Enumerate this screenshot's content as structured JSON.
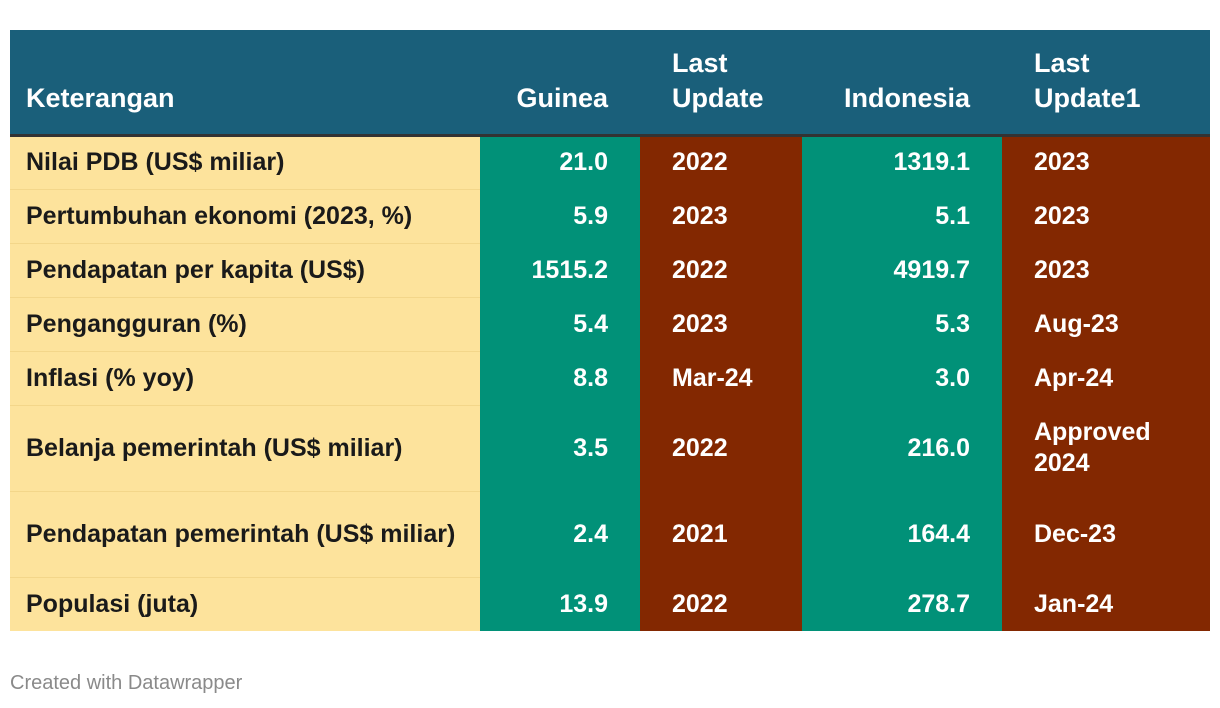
{
  "chart_data": {
    "type": "table",
    "columns": [
      "Keterangan",
      "Guinea",
      "Last Update",
      "Indonesia",
      "Last Update1"
    ],
    "header_display": [
      [
        "Keterangan"
      ],
      [
        "Guinea"
      ],
      [
        "Last",
        "Update"
      ],
      [
        "Indonesia"
      ],
      [
        "Last",
        "Update1"
      ]
    ],
    "rows": [
      [
        "Nilai PDB (US$ miliar)",
        "21.0",
        "2022",
        "1319.1",
        "2023"
      ],
      [
        "Pertumbuhan ekonomi (2023, %)",
        "5.9",
        "2023",
        "5.1",
        "2023"
      ],
      [
        "Pendapatan per kapita (US$)",
        "1515.2",
        "2022",
        "4919.7",
        "2023"
      ],
      [
        "Pengangguran (%)",
        "5.4",
        "2023",
        "5.3",
        "Aug-23"
      ],
      [
        "Inflasi (% yoy)",
        "8.8",
        "Mar-24",
        "3.0",
        "Apr-24"
      ],
      [
        "Belanja pemerintah (US$ miliar)",
        "3.5",
        "2022",
        "216.0",
        "Approved 2024"
      ],
      [
        "Pendapatan pemerintah (US$ miliar)",
        "2.4",
        "2021",
        "164.4",
        "Dec-23"
      ],
      [
        "Populasi (juta)",
        "13.9",
        "2022",
        "278.7",
        "Jan-24"
      ]
    ],
    "colors": {
      "header_bg": "#1a5f7a",
      "label_bg": "#fde39c",
      "value_bg": "#019178",
      "update_bg": "#832801"
    }
  },
  "footer": {
    "credit": "Created with Datawrapper"
  }
}
